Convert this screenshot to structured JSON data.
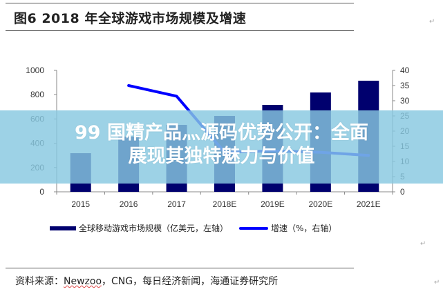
{
  "document": {
    "figure_title": "图6  2018 年全球游戏市场规模及增速",
    "source_label": "资料来源：",
    "source_underlined": "Newzoo",
    "source_rest": "，CNG，每日经济新闻，海通证券研究所",
    "paragraph_mark": "↵"
  },
  "overlay": {
    "line1": "99 国精产品灬源码优势公开：全面",
    "line2": "展现其独特魅力与价值"
  },
  "legend": {
    "bar_label": "全球移动游戏市场规模（亿美元，左轴）",
    "line_label": "增速（%，右轴）"
  },
  "colors": {
    "bar": "#00006e",
    "line": "#0000ff",
    "overlay": "#87c8e1"
  },
  "chart_data": {
    "type": "bar+line",
    "title": "2018 年全球游戏市场规模及增速",
    "categories": [
      "2015",
      "2016",
      "2017",
      "2018E",
      "2019E",
      "2020E",
      "2021E"
    ],
    "series": [
      {
        "name": "全球移动游戏市场规模（亿美元，左轴）",
        "type": "bar",
        "axis": "left",
        "values": [
          318,
          455,
          551,
          625,
          716,
          818,
          915
        ]
      },
      {
        "name": "增速（%，右轴）",
        "type": "line",
        "axis": "right",
        "values": [
          null,
          35,
          31.5,
          13,
          13.5,
          13,
          12
        ]
      }
    ],
    "left_axis": {
      "ticks": [
        "0",
        "200",
        "400",
        "600",
        "800",
        "1000"
      ],
      "ylim": [
        0,
        1000
      ]
    },
    "right_axis": {
      "ticks": [
        "0",
        "5",
        "10",
        "15",
        "20",
        "25",
        "30",
        "35",
        "40"
      ],
      "ylim": [
        0,
        40
      ]
    },
    "xlabel": "",
    "ylabel": "",
    "grid": false,
    "legend_position": "bottom"
  }
}
